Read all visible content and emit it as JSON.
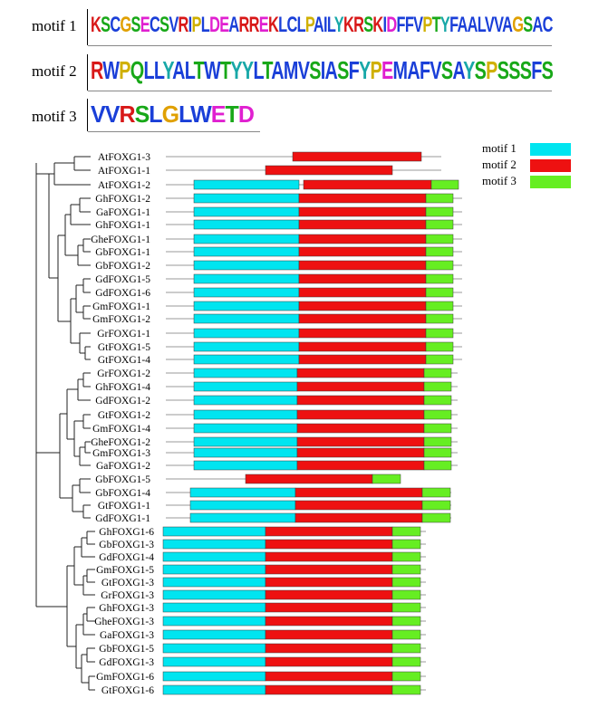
{
  "motif_logos": [
    {
      "label": "motif 1",
      "sequence": "KSCGSECSVRIPLDEARREKLCLPAILYKRSKIDFFVPTYFAALVVAGSAC"
    },
    {
      "label": "motif 2",
      "sequence": "RWPQLLYALTWTYYLTAMVSIASFYPEMAFVSAYSPSSSFS"
    },
    {
      "label": "motif 3",
      "sequence": "VVRSLGLWETD"
    }
  ],
  "legend": [
    {
      "label": "motif 1",
      "color": "#00e5f0"
    },
    {
      "label": "motif 2",
      "color": "#ee1111"
    },
    {
      "label": "motif 3",
      "color": "#66ee22"
    }
  ],
  "genes": [
    {
      "name": "AtFOXG1-3",
      "m1": false,
      "m2": true,
      "m3": false
    },
    {
      "name": "AtFOXG1-1",
      "m1": false,
      "m2": true,
      "m3": false
    },
    {
      "name": "AtFOXG1-2",
      "m1": true,
      "m2": true,
      "m3": true
    },
    {
      "name": "GhFOXG1-2",
      "m1": true,
      "m2": true,
      "m3": true
    },
    {
      "name": "GaFOXG1-1",
      "m1": true,
      "m2": true,
      "m3": true
    },
    {
      "name": "GhFOXG1-1",
      "m1": true,
      "m2": true,
      "m3": true
    },
    {
      "name": "GheFOXG1-1",
      "m1": true,
      "m2": true,
      "m3": true
    },
    {
      "name": "GbFOXG1-1",
      "m1": true,
      "m2": true,
      "m3": true
    },
    {
      "name": "GbFOXG1-2",
      "m1": true,
      "m2": true,
      "m3": true
    },
    {
      "name": "GdFOXG1-5",
      "m1": true,
      "m2": true,
      "m3": true
    },
    {
      "name": "GdFOXG1-6",
      "m1": true,
      "m2": true,
      "m3": true
    },
    {
      "name": "GmFOXG1-1",
      "m1": true,
      "m2": true,
      "m3": true
    },
    {
      "name": "GmFOXG1-2",
      "m1": true,
      "m2": true,
      "m3": true
    },
    {
      "name": "GrFOXG1-1",
      "m1": true,
      "m2": true,
      "m3": true
    },
    {
      "name": "GtFOXG1-5",
      "m1": true,
      "m2": true,
      "m3": true
    },
    {
      "name": "GtFOXG1-4",
      "m1": true,
      "m2": true,
      "m3": true
    },
    {
      "name": "GrFOXG1-2",
      "m1": true,
      "m2": true,
      "m3": true
    },
    {
      "name": "GhFOXG1-4",
      "m1": true,
      "m2": true,
      "m3": true
    },
    {
      "name": "GdFOXG1-2",
      "m1": true,
      "m2": true,
      "m3": true
    },
    {
      "name": "GtFOXG1-2",
      "m1": true,
      "m2": true,
      "m3": true
    },
    {
      "name": "GmFOXG1-4",
      "m1": true,
      "m2": true,
      "m3": true
    },
    {
      "name": "GheFOXG1-2",
      "m1": true,
      "m2": true,
      "m3": true
    },
    {
      "name": "GmFOXG1-3",
      "m1": true,
      "m2": true,
      "m3": true
    },
    {
      "name": "GaFOXG1-2",
      "m1": true,
      "m2": true,
      "m3": true
    },
    {
      "name": "GbFOXG1-5",
      "m1": false,
      "m2": true,
      "m3": true
    },
    {
      "name": "GbFOXG1-4",
      "m1": true,
      "m2": true,
      "m3": true
    },
    {
      "name": "GtFOXG1-1",
      "m1": true,
      "m2": true,
      "m3": true
    },
    {
      "name": "GdFOXG1-1",
      "m1": true,
      "m2": true,
      "m3": true
    },
    {
      "name": "GhFOXG1-6",
      "m1": true,
      "m2": true,
      "m3": true
    },
    {
      "name": "GbFOXG1-3",
      "m1": true,
      "m2": true,
      "m3": true
    },
    {
      "name": "GdFOXG1-4",
      "m1": true,
      "m2": true,
      "m3": true
    },
    {
      "name": "GmFOXG1-5",
      "m1": true,
      "m2": true,
      "m3": true
    },
    {
      "name": "GtFOXG1-3",
      "m1": true,
      "m2": true,
      "m3": true
    },
    {
      "name": "GrFOXG1-3",
      "m1": true,
      "m2": true,
      "m3": true
    },
    {
      "name": "GhFOXG1-3",
      "m1": true,
      "m2": true,
      "m3": true
    },
    {
      "name": "GheFOXG1-3",
      "m1": true,
      "m2": true,
      "m3": true
    },
    {
      "name": "GaFOXG1-3",
      "m1": true,
      "m2": true,
      "m3": true
    },
    {
      "name": "GbFOXG1-5",
      "m1": true,
      "m2": true,
      "m3": true
    },
    {
      "name": "GdFOXG1-3",
      "m1": true,
      "m2": true,
      "m3": true
    },
    {
      "name": "GmFOXG1-6",
      "m1": true,
      "m2": true,
      "m3": true
    },
    {
      "name": "GtFOXG1-6",
      "m1": true,
      "m2": true,
      "m3": true
    }
  ]
}
